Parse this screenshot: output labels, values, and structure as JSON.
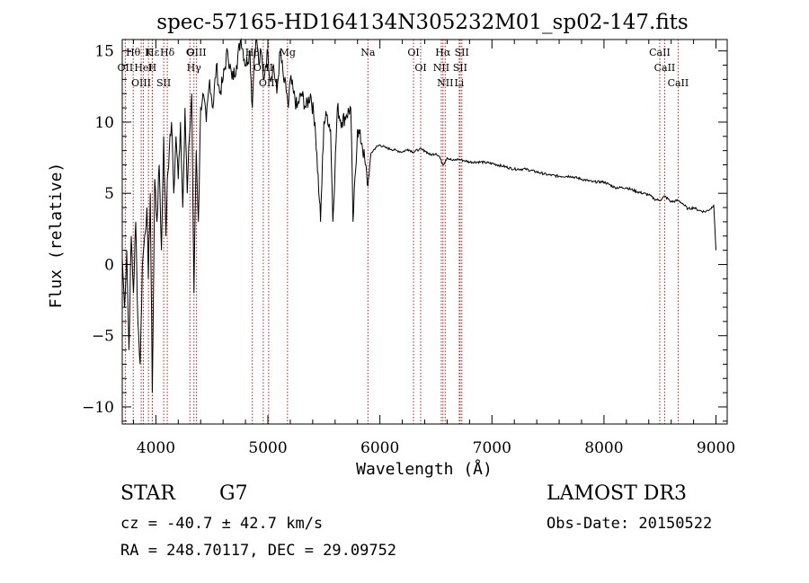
{
  "chart_data": {
    "type": "line",
    "title": "spec-57165-HD164134N305232M01_sp02-147.fits",
    "xlabel": "Wavelength (Å)",
    "ylabel": "Flux (relative)",
    "xlim": [
      3700,
      9100
    ],
    "ylim": [
      -11.2,
      15.8
    ],
    "xticks": [
      4000,
      5000,
      6000,
      7000,
      8000,
      9000
    ],
    "yticks": [
      -10,
      -5,
      0,
      5,
      10,
      15
    ],
    "grid": false,
    "series": [
      {
        "name": "spectrum",
        "x": [
          3700,
          3720,
          3740,
          3760,
          3780,
          3800,
          3820,
          3840,
          3860,
          3880,
          3900,
          3920,
          3933,
          3950,
          3968,
          3990,
          4010,
          4030,
          4050,
          4070,
          4090,
          4102,
          4120,
          4140,
          4160,
          4180,
          4200,
          4220,
          4240,
          4260,
          4280,
          4300,
          4320,
          4340,
          4360,
          4380,
          4400,
          4420,
          4450,
          4480,
          4510,
          4540,
          4570,
          4600,
          4640,
          4680,
          4720,
          4760,
          4800,
          4840,
          4861,
          4880,
          4900,
          4920,
          4940,
          4960,
          4980,
          5000,
          5020,
          5050,
          5080,
          5110,
          5140,
          5170,
          5183,
          5200,
          5230,
          5260,
          5300,
          5340,
          5380,
          5420,
          5460,
          5470,
          5500,
          5530,
          5560,
          5580,
          5620,
          5660,
          5700,
          5740,
          5760,
          5800,
          5840,
          5870,
          5893,
          5920,
          5960,
          6000,
          6050,
          6100,
          6150,
          6200,
          6250,
          6300,
          6350,
          6400,
          6450,
          6500,
          6530,
          6563,
          6600,
          6650,
          6700,
          6750,
          6800,
          6900,
          7000,
          7100,
          7200,
          7300,
          7400,
          7500,
          7600,
          7700,
          7800,
          7900,
          8000,
          8100,
          8200,
          8300,
          8400,
          8450,
          8498,
          8542,
          8600,
          8662,
          8700,
          8750,
          8800,
          8850,
          8900,
          8950,
          8980,
          9000
        ],
        "y": [
          0.5,
          -3,
          1,
          -6,
          2,
          -2,
          3,
          -4,
          -7,
          0,
          2,
          4,
          -1,
          5,
          -9,
          6,
          3,
          7,
          1,
          9,
          2,
          6,
          8,
          10,
          5,
          9,
          6,
          10,
          4,
          11,
          5,
          9,
          12,
          -2,
          8,
          3,
          11,
          12,
          10,
          13,
          11,
          14,
          12,
          13,
          15,
          13,
          14,
          16,
          14,
          15,
          11,
          15,
          16,
          14,
          15,
          13,
          14,
          15,
          13,
          14,
          12,
          15,
          13,
          12,
          11,
          13,
          12,
          11,
          12,
          11,
          12,
          10,
          4.5,
          3,
          10,
          10.5,
          9.5,
          3,
          11,
          10,
          10.5,
          11,
          3,
          9.5,
          8.5,
          7,
          5.5,
          7.8,
          8.2,
          8.4,
          8.2,
          8.1,
          8,
          7.9,
          8.1,
          7.9,
          8.1,
          8,
          7.7,
          7.8,
          7.6,
          7,
          7.5,
          7.3,
          7.4,
          7.3,
          7.2,
          7.2,
          7.1,
          6.9,
          6.7,
          6.7,
          6.5,
          6.3,
          6.2,
          6.2,
          6,
          5.8,
          5.8,
          5.4,
          5.4,
          5.1,
          4.9,
          4.6,
          4.5,
          4.8,
          4.4,
          4.5,
          4.3,
          3.9,
          4,
          3.8,
          3.7,
          3.9,
          4.2,
          1
        ]
      }
    ],
    "lines": [
      {
        "name": "Hθ",
        "x": 3798
      },
      {
        "name": "OII",
        "x": 3727
      },
      {
        "name": "OIII",
        "x": 3869
      },
      {
        "name": "HeI",
        "x": 3889
      },
      {
        "name": "K",
        "x": 3934
      },
      {
        "name": "H",
        "x": 3968
      },
      {
        "name": "Hε",
        "x": 3970
      },
      {
        "name": "SII",
        "x": 4070
      },
      {
        "name": "Hδ",
        "x": 4102
      },
      {
        "name": "OIII",
        "x": 4363
      },
      {
        "name": "Hγ",
        "x": 4340
      },
      {
        "name": "G",
        "x": 4304
      },
      {
        "name": "Hβ",
        "x": 4861
      },
      {
        "name": "OIII",
        "x": 4959
      },
      {
        "name": "OIII",
        "x": 5007
      },
      {
        "name": "Mg",
        "x": 5175
      },
      {
        "name": "Na",
        "x": 5893
      },
      {
        "name": "OI",
        "x": 6300
      },
      {
        "name": "OI",
        "x": 6364
      },
      {
        "name": "Hα",
        "x": 6563
      },
      {
        "name": "NII",
        "x": 6548
      },
      {
        "name": "NII",
        "x": 6583
      },
      {
        "name": "SII",
        "x": 6716
      },
      {
        "name": "SII",
        "x": 6731
      },
      {
        "name": "Li",
        "x": 6708
      },
      {
        "name": "CaII",
        "x": 8498
      },
      {
        "name": "CaII",
        "x": 8542
      },
      {
        "name": "CaII",
        "x": 8662
      }
    ]
  },
  "info": {
    "object_class": "STAR",
    "subclass": "G7",
    "survey": "LAMOST DR3",
    "cz": "cz = -40.7 ± 42.7 km/s",
    "obs_date": "Obs-Date: 20150522",
    "radec": "RA = 248.70117, DEC =  29.09752"
  },
  "colors": {
    "axes": "#000000",
    "spectrum": "#000000",
    "line_markers": "#b22222"
  }
}
